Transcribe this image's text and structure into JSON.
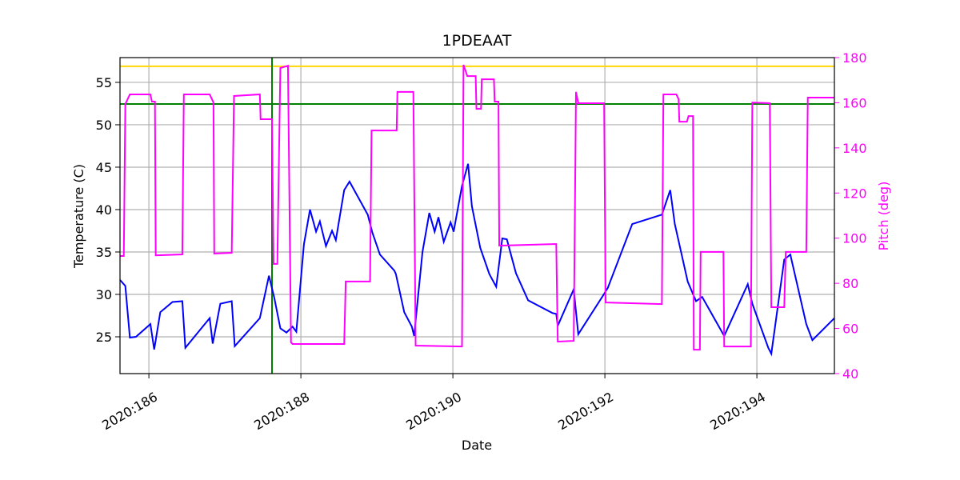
{
  "chart_data": {
    "type": "line",
    "title": "1PDEAAT",
    "x_label": "Date",
    "y_label": "Temperature (C)",
    "y2_label": "Pitch (deg)",
    "xlim": [
      185.62,
      195.02
    ],
    "xticks": [
      {
        "value": 186,
        "label": "2020:186"
      },
      {
        "value": 188,
        "label": "2020:188"
      },
      {
        "value": 190,
        "label": "2020:190"
      },
      {
        "value": 192,
        "label": "2020:192"
      },
      {
        "value": 194,
        "label": "2020:194"
      }
    ],
    "ylim": [
      20.66,
      57.92
    ],
    "yticks": [
      25,
      30,
      35,
      40,
      45,
      50,
      55
    ],
    "y2lim": [
      40,
      180
    ],
    "y2ticks": [
      40,
      60,
      80,
      100,
      120,
      140,
      160,
      180
    ],
    "y2_color": "#ff00ff",
    "grid": true,
    "hlines": [
      {
        "value": 56.9,
        "color": "#ffd700"
      },
      {
        "value": 52.45,
        "color": "#008000"
      }
    ],
    "vlines": [
      {
        "value": 187.62,
        "color": "#008000"
      }
    ],
    "series": [
      {
        "color": "#0000ff",
        "axis": "y",
        "x": [
          185.62,
          185.69,
          185.75,
          185.83,
          186.02,
          186.07,
          186.15,
          186.31,
          186.44,
          186.48,
          186.8,
          186.84,
          186.94,
          187.09,
          187.13,
          187.46,
          187.58,
          187.65,
          187.73,
          187.81,
          187.89,
          187.94,
          188.04,
          188.12,
          188.2,
          188.25,
          188.33,
          188.41,
          188.46,
          188.57,
          188.64,
          188.88,
          188.94,
          189.04,
          189.23,
          189.25,
          189.36,
          189.46,
          189.49,
          189.6,
          189.69,
          189.76,
          189.81,
          189.88,
          189.97,
          190.01,
          190.12,
          190.2,
          190.25,
          190.36,
          190.48,
          190.57,
          190.65,
          190.71,
          190.83,
          190.99,
          191.31,
          191.36,
          191.38,
          191.59,
          191.65,
          192.0,
          192.04,
          192.36,
          192.75,
          192.86,
          192.92,
          193.09,
          193.2,
          193.28,
          193.57,
          193.88,
          193.94,
          194.15,
          194.19,
          194.36,
          194.44,
          194.65,
          194.73,
          195.02
        ],
        "values": [
          31.7,
          31.0,
          24.9,
          25.0,
          26.5,
          23.5,
          27.9,
          29.1,
          29.2,
          23.7,
          27.2,
          24.2,
          28.9,
          29.2,
          23.9,
          27.2,
          32.2,
          29.6,
          26.0,
          25.5,
          26.2,
          25.6,
          35.9,
          40.0,
          37.4,
          38.6,
          35.7,
          37.5,
          36.4,
          42.3,
          43.3,
          39.4,
          37.3,
          34.7,
          32.8,
          32.4,
          27.9,
          26.2,
          25.1,
          35.0,
          39.6,
          37.4,
          39.1,
          36.2,
          38.5,
          37.4,
          42.8,
          45.4,
          40.4,
          35.5,
          32.4,
          30.9,
          36.6,
          36.5,
          32.5,
          29.3,
          27.8,
          27.7,
          26.3,
          30.6,
          25.3,
          30.2,
          30.8,
          38.3,
          39.4,
          42.3,
          38.3,
          31.5,
          29.2,
          29.7,
          25.1,
          31.2,
          28.9,
          23.7,
          23.0,
          34.1,
          34.7,
          26.5,
          24.6,
          27.2
        ]
      },
      {
        "color": "#ff00ff",
        "axis": "y2",
        "x": [
          185.62,
          185.67,
          185.69,
          185.75,
          186.02,
          186.04,
          186.08,
          186.09,
          186.44,
          186.46,
          186.8,
          186.85,
          186.86,
          187.09,
          187.12,
          187.46,
          187.47,
          187.62,
          187.64,
          187.69,
          187.73,
          187.83,
          187.87,
          187.89,
          188.57,
          188.59,
          188.91,
          188.93,
          189.26,
          189.27,
          189.48,
          189.51,
          190.12,
          190.14,
          190.19,
          190.3,
          190.31,
          190.37,
          190.38,
          190.54,
          190.55,
          190.6,
          190.61,
          191.36,
          191.38,
          191.59,
          191.62,
          191.65,
          191.99,
          192.01,
          192.75,
          192.77,
          192.94,
          192.97,
          192.98,
          193.08,
          193.1,
          193.16,
          193.17,
          193.25,
          193.26,
          193.56,
          193.57,
          193.92,
          193.94,
          194.17,
          194.19,
          194.36,
          194.38,
          194.65,
          194.67,
          195.02
        ],
        "values": [
          92.1,
          92.1,
          159.4,
          163.7,
          163.7,
          160.5,
          160.5,
          92.4,
          92.8,
          163.7,
          163.7,
          160.1,
          93.2,
          93.5,
          163.0,
          163.7,
          152.7,
          152.7,
          88.6,
          88.6,
          175.4,
          176.4,
          53.8,
          53.1,
          53.1,
          80.8,
          80.8,
          147.7,
          147.7,
          164.8,
          164.8,
          52.4,
          52.0,
          176.8,
          171.8,
          171.8,
          157.3,
          157.3,
          170.4,
          170.4,
          160.5,
          160.5,
          96.7,
          97.4,
          54.2,
          54.5,
          164.8,
          159.8,
          159.8,
          71.5,
          70.8,
          163.7,
          163.7,
          161.6,
          151.6,
          151.6,
          154.1,
          154.1,
          50.6,
          50.6,
          93.9,
          93.9,
          52.0,
          52.0,
          160.1,
          159.8,
          69.4,
          69.4,
          93.9,
          93.9,
          162.3,
          162.3
        ]
      }
    ]
  }
}
